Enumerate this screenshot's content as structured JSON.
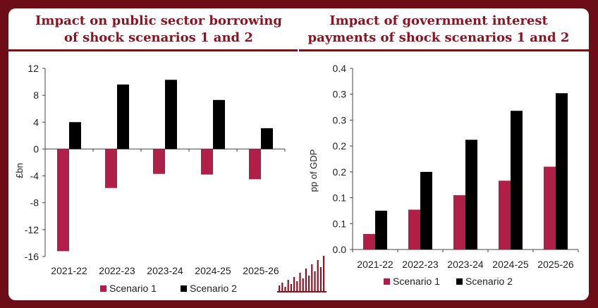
{
  "colors": {
    "scenario1": "#b01f48",
    "scenario2": "#000000",
    "title": "#8c1322",
    "frame": "#6d0e16"
  },
  "logo": {
    "name": "bar-logo"
  },
  "chart_data": [
    {
      "type": "bar",
      "title": "Impact on public sector borrowing of shock scenarios 1 and 2",
      "ylabel": "£bn",
      "xlabel": "",
      "categories": [
        "2021-22",
        "2022-23",
        "2023-24",
        "2024-25",
        "2025-26"
      ],
      "series": [
        {
          "name": "Scenario 1",
          "values": [
            -15.2,
            -5.8,
            -3.7,
            -3.8,
            -4.5
          ]
        },
        {
          "name": "Scenario 2",
          "values": [
            4.0,
            9.6,
            10.3,
            7.3,
            3.1
          ]
        }
      ],
      "ylim": [
        -16,
        12
      ],
      "yticks": [
        "12",
        "8",
        "4",
        "0",
        "-4",
        "-8",
        "-12",
        "-16"
      ],
      "legend": "bottom",
      "grid": false
    },
    {
      "type": "bar",
      "title": "Impact of government interest payments of shock scenarios 1 and 2",
      "ylabel": "pp of GDP",
      "xlabel": "",
      "categories": [
        "2021-22",
        "2022-23",
        "2023-24",
        "2024-25",
        "2025-26"
      ],
      "series": [
        {
          "name": "Scenario 1",
          "values": [
            0.03,
            0.077,
            0.105,
            0.133,
            0.16
          ]
        },
        {
          "name": "Scenario 2",
          "values": [
            0.075,
            0.15,
            0.212,
            0.268,
            0.302
          ]
        }
      ],
      "ylim": [
        0,
        0.35
      ],
      "yticks": [
        "0.4",
        "0.3",
        "0.3",
        "0.2",
        "0.2",
        "0.1",
        "0.1",
        "0.0"
      ],
      "legend": "bottom",
      "grid": false
    }
  ]
}
